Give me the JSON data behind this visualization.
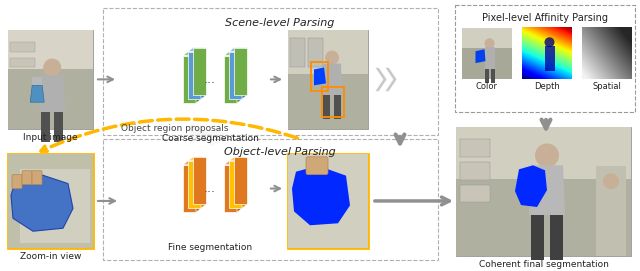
{
  "bg_color": "#ffffff",
  "scene_label": "Scene-level Parsing",
  "object_label": "Object-level Parsing",
  "pixel_label": "Pixel-level Affinity Parsing",
  "labels": {
    "input_image": "Input image",
    "coarse_seg": "Coarse segmentation",
    "zoom_in": "Zoom-in view",
    "fine_seg": "Fine segmentation",
    "object_proposals": "Object region proposals",
    "coherent": "Coherent final segmentation",
    "color": "Color",
    "depth": "Depth",
    "spatial": "Spatial"
  },
  "colors": {
    "layer_blue": "#5B9BD5",
    "layer_green": "#70AD47",
    "layer_orange": "#E07820",
    "layer_orange2": "#FFC000",
    "layer_orange_dark": "#C05800",
    "arrow_gray": "#909090",
    "dashed_gold": "#FFB700",
    "box_border": "#b0b0b0",
    "pixel_border": "#999999"
  }
}
